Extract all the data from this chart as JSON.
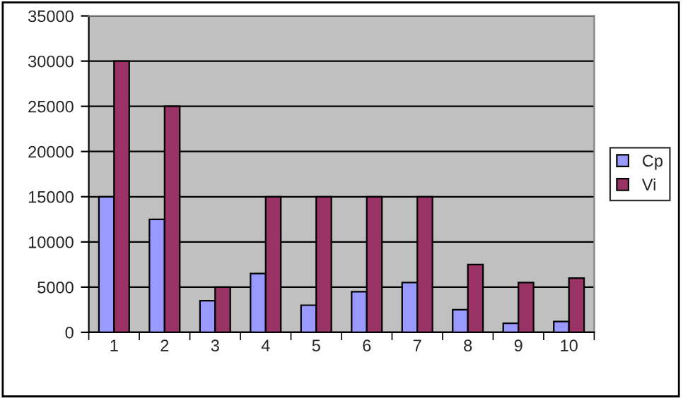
{
  "chart_data": {
    "type": "bar",
    "categories": [
      "1",
      "2",
      "3",
      "4",
      "5",
      "6",
      "7",
      "8",
      "9",
      "10"
    ],
    "series": [
      {
        "name": "Cp",
        "color": "#9999ff",
        "values": [
          15000,
          12500,
          3500,
          6500,
          3000,
          4500,
          5500,
          2500,
          1000,
          1200
        ]
      },
      {
        "name": "Vi",
        "color": "#993366",
        "values": [
          30000,
          25000,
          5000,
          15000,
          15000,
          15000,
          15000,
          7500,
          5500,
          6000
        ]
      }
    ],
    "ylim": [
      0,
      35000
    ],
    "yticks": [
      0,
      5000,
      10000,
      15000,
      20000,
      25000,
      30000,
      35000
    ],
    "grid": "y",
    "legend": "right"
  }
}
